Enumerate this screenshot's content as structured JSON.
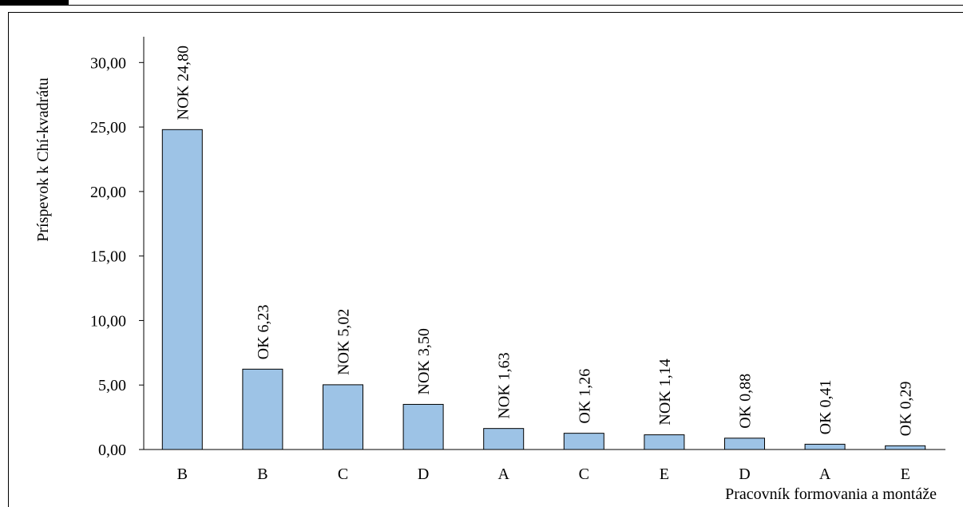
{
  "chart_data": {
    "type": "bar",
    "y_axis_label": "Príspevok k Chí-kvadrátu",
    "x_axis_label": "Pracovník formovania a montáže",
    "categories": [
      "B",
      "B",
      "C",
      "D",
      "A",
      "C",
      "E",
      "D",
      "A",
      "E"
    ],
    "values": [
      24.8,
      6.23,
      5.02,
      3.5,
      1.63,
      1.26,
      1.14,
      0.88,
      0.41,
      0.29
    ],
    "value_labels": [
      "NOK 24,80",
      "OK 6,23",
      "NOK 5,02",
      "NOK 3,50",
      "NOK 1,63",
      "OK 1,26",
      "NOK 1,14",
      "OK 0,88",
      "OK 0,41",
      "OK 0,29"
    ],
    "color": "#9dc3e6",
    "ylim": [
      0,
      32
    ],
    "yticks": [
      {
        "value": 0,
        "label": "0,00"
      },
      {
        "value": 5,
        "label": "5,00"
      },
      {
        "value": 10,
        "label": "10,00"
      },
      {
        "value": 15,
        "label": "15,00"
      },
      {
        "value": 20,
        "label": "20,00"
      },
      {
        "value": 25,
        "label": "25,00"
      },
      {
        "value": 30,
        "label": "30,00"
      }
    ],
    "grid": false
  }
}
